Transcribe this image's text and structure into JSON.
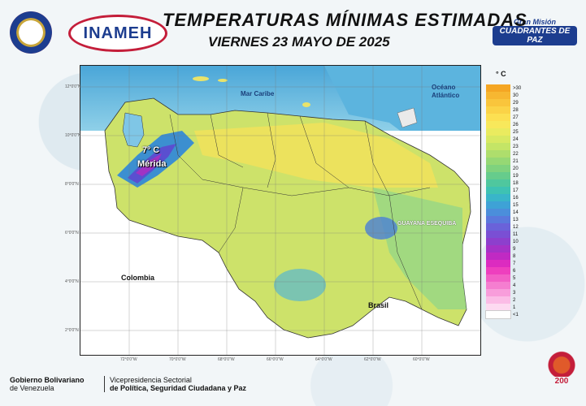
{
  "header": {
    "title": "TEMPERATURAS  MÍNIMAS  ESTIMADAS",
    "subtitle": "VIERNES 23 MAYO DE 2025",
    "inameh_logo_text": "INAMEH",
    "gmcp_line1": "Gran Misión",
    "gmcp_line2": "CUADRANTES DE PAZ"
  },
  "map": {
    "sea_label": "Mar Caribe",
    "ocean_label_1": "Océano",
    "ocean_label_2": "Atlántico",
    "country_colombia": "Colombia",
    "country_brasil": "Brasil",
    "city_temp": "7º C",
    "city_name": "Mérida",
    "region_label": "GUAYANA ESEQUIBA",
    "lat_ticks": [
      "12°0'0\"N",
      "10°0'0\"N",
      "8°0'0\"N",
      "6°0'0\"N",
      "4°0'0\"N",
      "2°0'0\"N"
    ],
    "lon_ticks": [
      "72°0'0\"W",
      "70°0'0\"W",
      "68°0'0\"W",
      "66°0'0\"W",
      "64°0'0\"W",
      "62°0'0\"W",
      "60°0'0\"W"
    ]
  },
  "legend": {
    "unit": "° C",
    "items": [
      {
        "label": ">30",
        "color": "#f5a623"
      },
      {
        "label": "30",
        "color": "#f7b731"
      },
      {
        "label": "29",
        "color": "#f9c53c"
      },
      {
        "label": "28",
        "color": "#fbd347"
      },
      {
        "label": "27",
        "color": "#fce052"
      },
      {
        "label": "26",
        "color": "#f8e85b"
      },
      {
        "label": "25",
        "color": "#eaeb5f"
      },
      {
        "label": "24",
        "color": "#d8e962"
      },
      {
        "label": "23",
        "color": "#c4e566"
      },
      {
        "label": "22",
        "color": "#aede6c"
      },
      {
        "label": "21",
        "color": "#96d874"
      },
      {
        "label": "20",
        "color": "#7fd27e"
      },
      {
        "label": "19",
        "color": "#66cc8c"
      },
      {
        "label": "18",
        "color": "#4fc79e"
      },
      {
        "label": "17",
        "color": "#3ec2b3"
      },
      {
        "label": "16",
        "color": "#39b5c9"
      },
      {
        "label": "15",
        "color": "#3ea2d6"
      },
      {
        "label": "14",
        "color": "#4b8edb"
      },
      {
        "label": "13",
        "color": "#5a78dc"
      },
      {
        "label": "12",
        "color": "#6a62d9"
      },
      {
        "label": "11",
        "color": "#7a4fd4"
      },
      {
        "label": "10",
        "color": "#8d3fcd"
      },
      {
        "label": "9",
        "color": "#a532c7"
      },
      {
        "label": "8",
        "color": "#c02ac3"
      },
      {
        "label": "7",
        "color": "#dc2bc0"
      },
      {
        "label": "6",
        "color": "#ee3fbe"
      },
      {
        "label": "5",
        "color": "#f25fc6"
      },
      {
        "label": "4",
        "color": "#f57ed0"
      },
      {
        "label": "3",
        "color": "#f89ddb"
      },
      {
        "label": "2",
        "color": "#fbbce6"
      },
      {
        "label": "1",
        "color": "#fddaf1"
      },
      {
        "label": "<1",
        "color": "#ffffff"
      }
    ]
  },
  "footer": {
    "gob_line1": "Gobierno Bolivariano",
    "gob_line2": "de Venezuela",
    "vice_line1": "Vicepresidencia Sectorial",
    "vice_line2": "de Política, Seguridad Ciudadana y Paz",
    "bicentenario": "200"
  }
}
